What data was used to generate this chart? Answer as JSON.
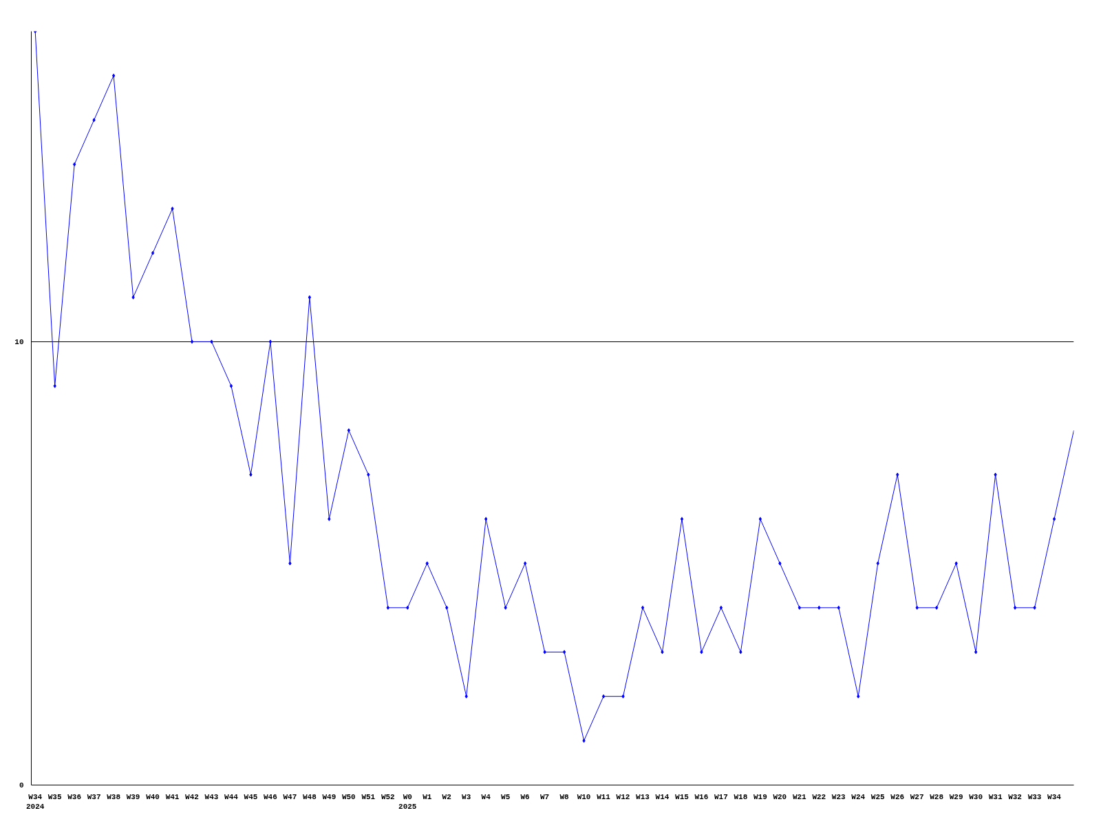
{
  "chart_data": {
    "type": "line",
    "categories": [
      "W34\n2024",
      "W35",
      "W36",
      "W37",
      "W38",
      "W39",
      "W40",
      "W41",
      "W42",
      "W43",
      "W44",
      "W45",
      "W46",
      "W47",
      "W48",
      "W49",
      "W50",
      "W51",
      "W52",
      "W0\n2025",
      "W1",
      "W2",
      "W3",
      "W4",
      "W5",
      "W6",
      "W7",
      "W8",
      "W10",
      "W11",
      "W12",
      "W13",
      "W14",
      "W15",
      "W16",
      "W17",
      "W18",
      "W19",
      "W20",
      "W21",
      "W22",
      "W23",
      "W24",
      "W25",
      "W26",
      "W27",
      "W28",
      "W29",
      "W30",
      "W31",
      "W32",
      "W33",
      "W34",
      null
    ],
    "series": [
      {
        "color": "#0000ff",
        "values": [
          17,
          9,
          14,
          15,
          16,
          11,
          12,
          13,
          10,
          10,
          9,
          7,
          10,
          5,
          11,
          6,
          8,
          7,
          4,
          4,
          5,
          4,
          2,
          6,
          4,
          5,
          3,
          3,
          1,
          2,
          2,
          4,
          3,
          6,
          3,
          4,
          3,
          6,
          5,
          4,
          4,
          4,
          2,
          5,
          7,
          4,
          4,
          5,
          3,
          7,
          4,
          4,
          6,
          8
        ]
      }
    ],
    "ylim": [
      0,
      17
    ],
    "yticks": [
      0,
      10
    ],
    "grid": "y",
    "marker": "diamond",
    "line_style": "solid"
  }
}
